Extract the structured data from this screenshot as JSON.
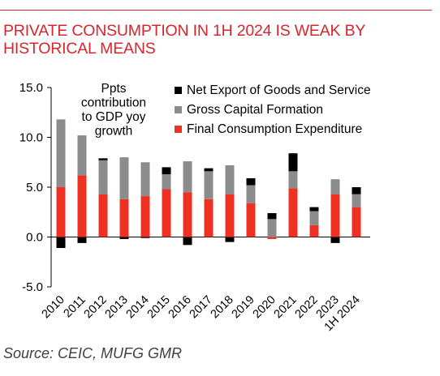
{
  "header": {
    "title_line1": "PRIVATE CONSUMPTION IN 1H 2024 IS WEAK BY",
    "title_line2": "HISTORICAL MEANS"
  },
  "footer": {
    "source": "Source: CEIC, MUFG GMR"
  },
  "colors": {
    "accent": "#d7262d",
    "net_export": "#000000",
    "gcf": "#8c8c8c",
    "fce": "#ef3124"
  },
  "chart_data": {
    "type": "bar",
    "stacked": true,
    "title": "",
    "annotation_lines": [
      "Ppts",
      "contribution",
      "to GDP yoy",
      "growth"
    ],
    "categories": [
      "2010",
      "2011",
      "2012",
      "2013",
      "2014",
      "2015",
      "2016",
      "2017",
      "2018",
      "2019",
      "2020",
      "2021",
      "2022",
      "2023",
      "1H 2024"
    ],
    "ylim": [
      -5.0,
      15.0
    ],
    "yticks": [
      "15.0",
      "10.0",
      "5.0",
      "0.0",
      "-5.0"
    ],
    "ytick_values": [
      15,
      10,
      5,
      0,
      -5
    ],
    "legend_position": "top-right",
    "grid": false,
    "series": [
      {
        "name": "Final Consumption Expenditure",
        "color": "#ef3124",
        "values": [
          5.0,
          6.2,
          4.3,
          3.8,
          4.1,
          4.8,
          4.5,
          3.8,
          4.3,
          3.4,
          -0.2,
          4.9,
          1.2,
          4.3,
          3.0
        ]
      },
      {
        "name": "Gross Capital Formation",
        "color": "#8c8c8c",
        "values": [
          6.8,
          4.0,
          3.4,
          4.2,
          3.4,
          1.5,
          3.1,
          2.8,
          2.9,
          1.8,
          1.8,
          1.7,
          1.4,
          1.5,
          1.3
        ]
      },
      {
        "name": "Net Export of Goods and Service",
        "color": "#000000",
        "values": [
          -1.1,
          -0.6,
          0.2,
          -0.2,
          -0.1,
          0.7,
          -0.8,
          0.3,
          -0.5,
          0.7,
          0.6,
          1.8,
          0.4,
          -0.6,
          0.7
        ]
      }
    ],
    "legend_order": [
      "Net Export of Goods and Service",
      "Gross Capital Formation",
      "Final Consumption Expenditure"
    ]
  }
}
